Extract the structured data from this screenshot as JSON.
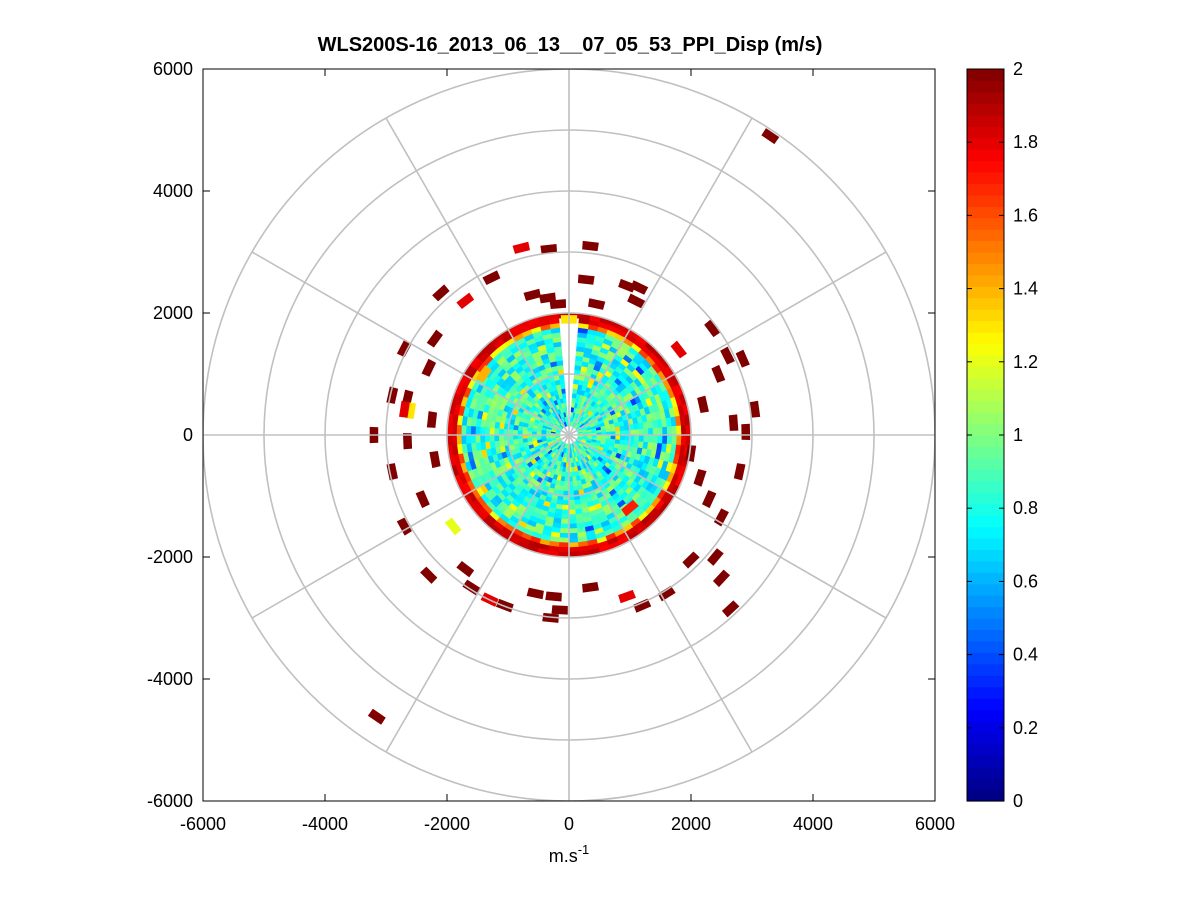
{
  "chart_data": {
    "type": "heatmap",
    "subtype": "polar-ppi",
    "title": "WLS200S-16_2013_06_13__07_05_53_PPI_Disp (m/s)",
    "xlabel_base": "m.s",
    "xlabel_exp": "-1",
    "ylabel": "",
    "xlim": [
      -6000,
      6000
    ],
    "ylim": [
      -6000,
      6000
    ],
    "xticks": [
      "-6000",
      "-4000",
      "-2000",
      "0",
      "2000",
      "4000",
      "6000"
    ],
    "yticks": [
      "6000",
      "4000",
      "2000",
      "0",
      "-2000",
      "-4000",
      "-6000"
    ],
    "polar_grid_radii": [
      1000,
      2000,
      3000,
      4000,
      5000,
      6000
    ],
    "polar_grid_angles_deg": [
      0,
      30,
      60,
      90,
      120,
      150,
      180,
      210,
      240,
      270,
      300,
      330
    ],
    "grid": true,
    "colormap": "jet",
    "colorbar": {
      "min": 0,
      "max": 2,
      "ticks": [
        "2",
        "1.8",
        "1.6",
        "1.4",
        "1.2",
        "1",
        "0.8",
        "0.6",
        "0.4",
        "0.2",
        "0"
      ]
    },
    "dense_region": {
      "r_min": 150,
      "r_max": 2000,
      "typical_value": 0.85,
      "edge_value": 1.9
    },
    "sparse_cells": [
      {
        "x": 3300,
        "y": 4900,
        "v": 2.0
      },
      {
        "x": -3150,
        "y": -4620,
        "v": 2.0
      },
      {
        "x": 350,
        "y": 3100,
        "v": 2.0
      },
      {
        "x": -780,
        "y": 3070,
        "v": 1.8
      },
      {
        "x": -330,
        "y": 3050,
        "v": 2.0
      },
      {
        "x": 280,
        "y": 2550,
        "v": 2.0
      },
      {
        "x": 950,
        "y": 2450,
        "v": 2.0
      },
      {
        "x": 1150,
        "y": 2420,
        "v": 2.0
      },
      {
        "x": 1100,
        "y": 2200,
        "v": 2.0
      },
      {
        "x": -1270,
        "y": 2580,
        "v": 2.0
      },
      {
        "x": -2100,
        "y": 2330,
        "v": 2.0
      },
      {
        "x": -1700,
        "y": 2200,
        "v": 1.8
      },
      {
        "x": -600,
        "y": 2300,
        "v": 2.0
      },
      {
        "x": -350,
        "y": 2250,
        "v": 2.0
      },
      {
        "x": -180,
        "y": 2150,
        "v": 2.0
      },
      {
        "x": 450,
        "y": 2150,
        "v": 2.0
      },
      {
        "x": -2200,
        "y": 1580,
        "v": 2.0
      },
      {
        "x": -2700,
        "y": 1420,
        "v": 2.0
      },
      {
        "x": -2300,
        "y": 1100,
        "v": 2.0
      },
      {
        "x": -2900,
        "y": 650,
        "v": 2.0
      },
      {
        "x": -2650,
        "y": 600,
        "v": 2.0
      },
      {
        "x": -2600,
        "y": 400,
        "v": 1.3
      },
      {
        "x": -2700,
        "y": 420,
        "v": 1.8
      },
      {
        "x": -2250,
        "y": 250,
        "v": 2.0
      },
      {
        "x": -3200,
        "y": 0,
        "v": 2.0
      },
      {
        "x": -2650,
        "y": -100,
        "v": 2.0
      },
      {
        "x": -2200,
        "y": -400,
        "v": 2.0
      },
      {
        "x": -2900,
        "y": -600,
        "v": 2.0
      },
      {
        "x": -2400,
        "y": -1050,
        "v": 2.0
      },
      {
        "x": -2700,
        "y": -1500,
        "v": 2.0
      },
      {
        "x": -1900,
        "y": -1500,
        "v": 1.2
      },
      {
        "x": -2300,
        "y": -2300,
        "v": 2.0
      },
      {
        "x": -1700,
        "y": -2200,
        "v": 2.0
      },
      {
        "x": -1600,
        "y": -2500,
        "v": 2.0
      },
      {
        "x": -1300,
        "y": -2700,
        "v": 1.8
      },
      {
        "x": -1050,
        "y": -2800,
        "v": 2.0
      },
      {
        "x": -550,
        "y": -2600,
        "v": 2.0
      },
      {
        "x": -250,
        "y": -2650,
        "v": 2.0
      },
      {
        "x": 350,
        "y": -2500,
        "v": 2.0
      },
      {
        "x": -150,
        "y": -2870,
        "v": 2.0
      },
      {
        "x": -300,
        "y": -3000,
        "v": 2.0
      },
      {
        "x": 950,
        "y": -2650,
        "v": 1.8
      },
      {
        "x": 1200,
        "y": -2800,
        "v": 2.0
      },
      {
        "x": 1600,
        "y": -2600,
        "v": 2.0
      },
      {
        "x": 2000,
        "y": -2050,
        "v": 2.0
      },
      {
        "x": 2400,
        "y": -2000,
        "v": 2.0
      },
      {
        "x": 2500,
        "y": -2350,
        "v": 2.0
      },
      {
        "x": 2650,
        "y": -2850,
        "v": 2.0
      },
      {
        "x": 2500,
        "y": -1350,
        "v": 2.0
      },
      {
        "x": 2300,
        "y": -1050,
        "v": 2.0
      },
      {
        "x": 2800,
        "y": -600,
        "v": 2.0
      },
      {
        "x": 2150,
        "y": -700,
        "v": 2.0
      },
      {
        "x": 2000,
        "y": -300,
        "v": 2.0
      },
      {
        "x": 2700,
        "y": 200,
        "v": 2.0
      },
      {
        "x": 2900,
        "y": 50,
        "v": 2.0
      },
      {
        "x": 3050,
        "y": 420,
        "v": 2.0
      },
      {
        "x": 2200,
        "y": 500,
        "v": 2.0
      },
      {
        "x": 2450,
        "y": 1000,
        "v": 2.0
      },
      {
        "x": 2850,
        "y": 1250,
        "v": 2.0
      },
      {
        "x": 2600,
        "y": 1300,
        "v": 2.0
      },
      {
        "x": 2350,
        "y": 1750,
        "v": 2.0
      },
      {
        "x": 1800,
        "y": 1400,
        "v": 1.8
      },
      {
        "x": 1000,
        "y": -1200,
        "v": 1.7
      },
      {
        "x": -1400,
        "y": 1000,
        "v": 1.4
      },
      {
        "x": 0,
        "y": 1900,
        "v": 1.3
      }
    ]
  }
}
